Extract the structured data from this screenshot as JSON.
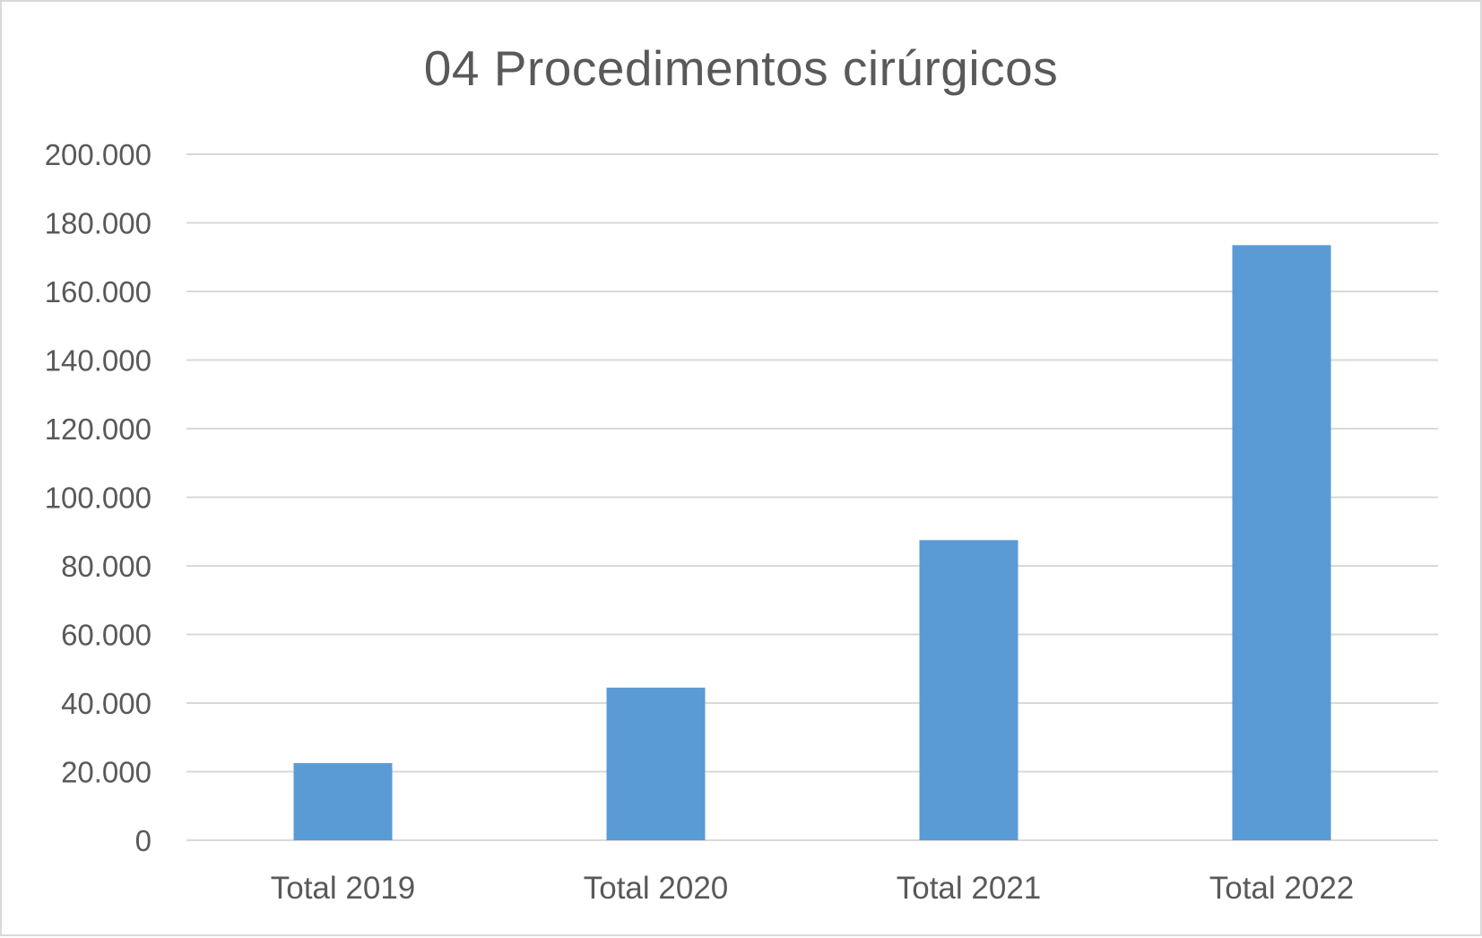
{
  "chart_data": {
    "type": "bar",
    "title": "04 Procedimentos cirúrgicos",
    "categories": [
      "Total 2019",
      "Total 2020",
      "Total 2021",
      "Total 2022"
    ],
    "values": [
      22500,
      44500,
      87500,
      173500
    ],
    "xlabel": "",
    "ylabel": "",
    "ylim": [
      0,
      200000
    ],
    "yticks": [
      0,
      20000,
      40000,
      60000,
      80000,
      100000,
      120000,
      140000,
      160000,
      180000,
      200000
    ],
    "ytick_labels": [
      "0",
      "20.000",
      "40.000",
      "60.000",
      "80.000",
      "100.000",
      "120.000",
      "140.000",
      "160.000",
      "180.000",
      "200.000"
    ],
    "grid": true,
    "legend": "none",
    "bar_color": "#5b9bd5",
    "grid_color": "#d9d9d9",
    "text_color": "#595959"
  }
}
